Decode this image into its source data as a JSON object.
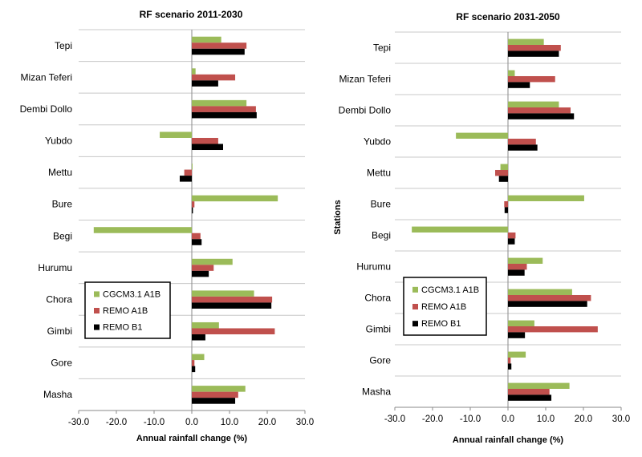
{
  "chart_data": [
    {
      "type": "bar",
      "orientation": "horizontal",
      "title": "RF scenario 2011-2030",
      "xlabel": "Annual rainfall change (%)",
      "ylabel": "",
      "xlim": [
        -30,
        30
      ],
      "xticks": [
        "-30.0",
        "-20.0",
        "-10.0",
        "0.0",
        "10.0",
        "20.0",
        "30.0"
      ],
      "categories": [
        "Tepi",
        "Mizan Teferi",
        "Dembi Dollo",
        "Yubdo",
        "Mettu",
        "Bure",
        "Begi",
        "Hurumu",
        "Chora",
        "Gimbi",
        "Gore",
        "Masha"
      ],
      "series": [
        {
          "name": "CGCM3.1 A1B",
          "color": "#9bbb59",
          "values": [
            7.8,
            1.0,
            14.5,
            -8.5,
            0.2,
            22.8,
            -26.0,
            10.8,
            16.5,
            7.2,
            3.3,
            14.2
          ]
        },
        {
          "name": "REMO A1B",
          "color": "#c0504d",
          "values": [
            14.5,
            11.5,
            17.0,
            7.0,
            -2.0,
            0.7,
            2.3,
            5.8,
            21.3,
            22.0,
            0.7,
            12.3
          ]
        },
        {
          "name": "REMO B1",
          "color": "#000000",
          "values": [
            14.0,
            7.0,
            17.2,
            8.3,
            -3.2,
            0.3,
            2.6,
            4.5,
            21.1,
            3.6,
            0.9,
            11.5
          ]
        }
      ],
      "legend": "left"
    },
    {
      "type": "bar",
      "orientation": "horizontal",
      "title": "RF scenario 2031-2050",
      "xlabel": "Annual rainfall change (%)",
      "ylabel": "Stations",
      "xlim": [
        -30,
        30
      ],
      "xticks": [
        "-30.0",
        "-20.0",
        "-10.0",
        "0.0",
        "10.0",
        "20.0",
        "30.0"
      ],
      "categories": [
        "Tepi",
        "Mizan Teferi",
        "Dembi Dollo",
        "Yubdo",
        "Mettu",
        "Bure",
        "Begi",
        "Hurumu",
        "Chora",
        "Gimbi",
        "Gore",
        "Masha"
      ],
      "series": [
        {
          "name": "CGCM3.1 A1B",
          "color": "#9bbb59",
          "values": [
            9.5,
            1.8,
            13.5,
            -13.8,
            -2.0,
            20.2,
            -25.5,
            9.2,
            17.0,
            7.0,
            4.7,
            16.3
          ]
        },
        {
          "name": "REMO A1B",
          "color": "#c0504d",
          "values": [
            14.0,
            12.5,
            16.6,
            7.4,
            -3.4,
            -1.0,
            2.0,
            5.0,
            22.0,
            23.8,
            0.7,
            11.0
          ]
        },
        {
          "name": "REMO B1",
          "color": "#000000",
          "values": [
            13.5,
            5.8,
            17.5,
            7.8,
            -2.4,
            -0.9,
            1.8,
            4.4,
            21.0,
            4.5,
            0.9,
            11.5
          ]
        }
      ],
      "legend": "left"
    }
  ]
}
